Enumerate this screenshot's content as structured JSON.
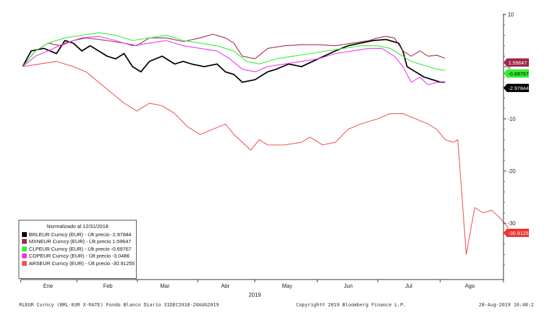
{
  "chart_data": {
    "type": "line",
    "title": "Normalizado al 12/31/2018",
    "x_labels": [
      "Ene",
      "Feb",
      "Mar",
      "Abr",
      "May",
      "Jun",
      "Jul",
      "Ago"
    ],
    "x_year": "2019",
    "x_range": [
      "2018-12-31",
      "2019-08-28"
    ],
    "y_ticks": [
      "10",
      "0",
      "-10",
      "-20",
      "-30"
    ],
    "y_tick_values": [
      10,
      0,
      -10,
      -20,
      -30
    ],
    "ylim": [
      -40,
      11
    ],
    "grid": false,
    "series": [
      {
        "name": "BRLEUR Curncy (EUR) - Últ precio -2.97844",
        "color": "#000000",
        "last_label": "-2.97844",
        "last": -2.97844,
        "points": [
          [
            0,
            0
          ],
          [
            0.02,
            3
          ],
          [
            0.05,
            3.5
          ],
          [
            0.08,
            2.5
          ],
          [
            0.1,
            5
          ],
          [
            0.12,
            4.5
          ],
          [
            0.14,
            3
          ],
          [
            0.16,
            4
          ],
          [
            0.2,
            2
          ],
          [
            0.22,
            1.5
          ],
          [
            0.24,
            2.5
          ],
          [
            0.26,
            0
          ],
          [
            0.28,
            -1
          ],
          [
            0.3,
            1
          ],
          [
            0.33,
            2
          ],
          [
            0.36,
            0.5
          ],
          [
            0.38,
            1
          ],
          [
            0.4,
            0.5
          ],
          [
            0.43,
            0
          ],
          [
            0.46,
            0.5
          ],
          [
            0.48,
            -1
          ],
          [
            0.5,
            -1.5
          ],
          [
            0.52,
            -3
          ],
          [
            0.55,
            -2.5
          ],
          [
            0.58,
            -1
          ],
          [
            0.6,
            -0.5
          ],
          [
            0.63,
            0.5
          ],
          [
            0.66,
            0
          ],
          [
            0.7,
            1.5
          ],
          [
            0.74,
            3
          ],
          [
            0.77,
            4
          ],
          [
            0.8,
            4.5
          ],
          [
            0.83,
            5
          ],
          [
            0.86,
            5.2
          ],
          [
            0.89,
            4.5
          ],
          [
            0.9,
            3
          ],
          [
            0.91,
            0
          ],
          [
            0.93,
            -1
          ],
          [
            0.95,
            -2
          ],
          [
            0.97,
            -2.5
          ],
          [
            0.99,
            -3
          ],
          [
            1,
            -2.97844
          ]
        ]
      },
      {
        "name": "MXNEUR Curncy (EUR) - Últ precio 1.59647",
        "color": "#a0294a",
        "last_label": "1.59647",
        "last": 1.59647,
        "points": [
          [
            0,
            0
          ],
          [
            0.03,
            3
          ],
          [
            0.06,
            4.5
          ],
          [
            0.09,
            4
          ],
          [
            0.12,
            5
          ],
          [
            0.15,
            5.5
          ],
          [
            0.2,
            5
          ],
          [
            0.24,
            4.5
          ],
          [
            0.27,
            4
          ],
          [
            0.3,
            5.5
          ],
          [
            0.34,
            5.5
          ],
          [
            0.38,
            4.8
          ],
          [
            0.42,
            5.5
          ],
          [
            0.45,
            6.2
          ],
          [
            0.48,
            5.5
          ],
          [
            0.5,
            4.5
          ],
          [
            0.52,
            2
          ],
          [
            0.55,
            1.5
          ],
          [
            0.58,
            3.5
          ],
          [
            0.62,
            4
          ],
          [
            0.66,
            4.2
          ],
          [
            0.7,
            4.2
          ],
          [
            0.74,
            4
          ],
          [
            0.78,
            4.5
          ],
          [
            0.82,
            5
          ],
          [
            0.84,
            5.5
          ],
          [
            0.86,
            5.8
          ],
          [
            0.88,
            5.5
          ],
          [
            0.9,
            3
          ],
          [
            0.92,
            2
          ],
          [
            0.94,
            3
          ],
          [
            0.96,
            2
          ],
          [
            0.98,
            2.2
          ],
          [
            1,
            1.59647
          ]
        ]
      },
      {
        "name": "CLPEUR Curncy (EUR) - Últ precio -0.69767",
        "color": "#33ee33",
        "last_label": "-0.69767",
        "last": -0.69767,
        "points": [
          [
            0,
            0
          ],
          [
            0.03,
            3
          ],
          [
            0.06,
            4.5
          ],
          [
            0.1,
            5.5
          ],
          [
            0.14,
            6
          ],
          [
            0.18,
            6.5
          ],
          [
            0.22,
            6
          ],
          [
            0.26,
            5
          ],
          [
            0.3,
            5.5
          ],
          [
            0.34,
            6
          ],
          [
            0.38,
            5
          ],
          [
            0.42,
            4.5
          ],
          [
            0.46,
            4
          ],
          [
            0.5,
            3
          ],
          [
            0.53,
            1
          ],
          [
            0.56,
            0.5
          ],
          [
            0.6,
            1.5
          ],
          [
            0.64,
            2
          ],
          [
            0.68,
            2.5
          ],
          [
            0.72,
            3
          ],
          [
            0.76,
            3.5
          ],
          [
            0.8,
            4
          ],
          [
            0.84,
            4
          ],
          [
            0.87,
            3.5
          ],
          [
            0.9,
            2
          ],
          [
            0.92,
            1
          ],
          [
            0.94,
            0.5
          ],
          [
            0.96,
            0
          ],
          [
            0.98,
            -0.5
          ],
          [
            1,
            -0.69767
          ]
        ]
      },
      {
        "name": "COPEUR Curncy (EUR) - Últ precio -3.0486",
        "color": "#ee33ee",
        "last_label": "-3.0486",
        "last": -3.0486,
        "points": [
          [
            0,
            0
          ],
          [
            0.03,
            2
          ],
          [
            0.06,
            3
          ],
          [
            0.1,
            4.5
          ],
          [
            0.14,
            5.5
          ],
          [
            0.18,
            5.8
          ],
          [
            0.22,
            5
          ],
          [
            0.26,
            4
          ],
          [
            0.3,
            4.5
          ],
          [
            0.34,
            5
          ],
          [
            0.38,
            4
          ],
          [
            0.42,
            3.5
          ],
          [
            0.46,
            3
          ],
          [
            0.49,
            1.5
          ],
          [
            0.52,
            -0.5
          ],
          [
            0.55,
            -1
          ],
          [
            0.58,
            0
          ],
          [
            0.62,
            0.5
          ],
          [
            0.66,
            1
          ],
          [
            0.7,
            1.5
          ],
          [
            0.74,
            2.5
          ],
          [
            0.78,
            3
          ],
          [
            0.82,
            3.5
          ],
          [
            0.85,
            3.5
          ],
          [
            0.88,
            2
          ],
          [
            0.9,
            0
          ],
          [
            0.92,
            -3
          ],
          [
            0.94,
            -2
          ],
          [
            0.96,
            -3.5
          ],
          [
            0.98,
            -3
          ],
          [
            1,
            -3.0486
          ]
        ]
      },
      {
        "name": "ARSEUR Curncy (EUR) - Últ precio -30.91255",
        "color": "#ee5555",
        "last_label": "-30.9125",
        "last": -30.91255,
        "points": [
          [
            0,
            0
          ],
          [
            0.04,
            0.5
          ],
          [
            0.08,
            1
          ],
          [
            0.12,
            0
          ],
          [
            0.15,
            -1
          ],
          [
            0.18,
            -3
          ],
          [
            0.21,
            -5
          ],
          [
            0.24,
            -7
          ],
          [
            0.27,
            -8.5
          ],
          [
            0.3,
            -7
          ],
          [
            0.33,
            -7.5
          ],
          [
            0.36,
            -9
          ],
          [
            0.39,
            -11.5
          ],
          [
            0.42,
            -13
          ],
          [
            0.45,
            -12
          ],
          [
            0.48,
            -11
          ],
          [
            0.5,
            -13
          ],
          [
            0.52,
            -14.5
          ],
          [
            0.54,
            -16
          ],
          [
            0.56,
            -14
          ],
          [
            0.58,
            -15
          ],
          [
            0.62,
            -15
          ],
          [
            0.66,
            -14.5
          ],
          [
            0.68,
            -13.5
          ],
          [
            0.71,
            -15
          ],
          [
            0.74,
            -14.5
          ],
          [
            0.77,
            -12
          ],
          [
            0.8,
            -11
          ],
          [
            0.84,
            -10
          ],
          [
            0.87,
            -9
          ],
          [
            0.9,
            -9
          ],
          [
            0.93,
            -10
          ],
          [
            0.96,
            -11
          ],
          [
            0.98,
            -12
          ],
          [
            1,
            -14
          ],
          [
            1.02,
            -14.5
          ],
          [
            1.03,
            -14
          ],
          [
            1.05,
            -36
          ],
          [
            1.07,
            -27
          ],
          [
            1.09,
            -28
          ],
          [
            1.11,
            -27.5
          ],
          [
            1.13,
            -29
          ],
          [
            1.15,
            -30.91255
          ]
        ]
      }
    ],
    "legend_title": "Normalizado al 12/31/2018"
  },
  "footer": {
    "left": "RLEUR Curncy (BRL-EUR X-RATE) Fondo Blanco  Diario 31DEC2018-28AUG2019",
    "center": "Copyright© 2019 Bloomberg Finance L.P.",
    "right": "28-Aug-2019 10:48:2"
  }
}
